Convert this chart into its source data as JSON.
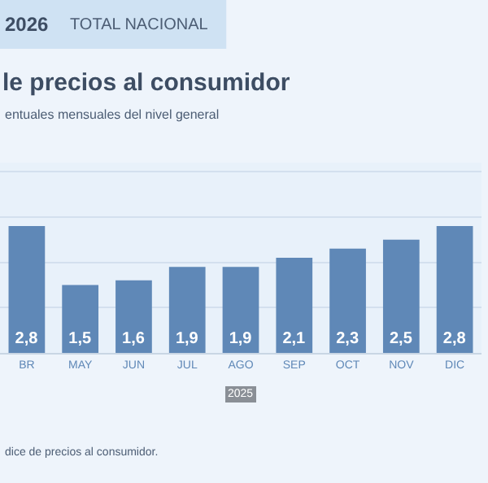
{
  "chart_data": {
    "type": "bar",
    "title": "le precios al consumidor",
    "subtitle": "entuales mensuales del nivel general",
    "annotations": [
      "2026",
      "TOTAL NACIONAL",
      "2025",
      "dice de precios al consumidor."
    ],
    "categories": [
      "BR",
      "MAY",
      "JUN",
      "JUL",
      "AGO",
      "SEP",
      "OCT",
      "NOV",
      "DIC"
    ],
    "values": [
      2.8,
      1.5,
      1.6,
      1.9,
      1.9,
      2.1,
      2.3,
      2.5,
      2.8
    ],
    "value_labels": [
      "2,8",
      "1,5",
      "1,6",
      "1,9",
      "1,9",
      "2,1",
      "2,3",
      "2,5",
      "2,8"
    ],
    "color": "#5f88b7",
    "ylim": [
      0,
      4.2
    ],
    "yticks": [
      {
        "value": 1,
        "label": null
      },
      {
        "value": 2,
        "label": null
      },
      {
        "value": 3,
        "label": null
      },
      {
        "value": 4,
        "label": null
      }
    ],
    "grid": "y",
    "tick_labels": "x",
    "legend": false
  }
}
